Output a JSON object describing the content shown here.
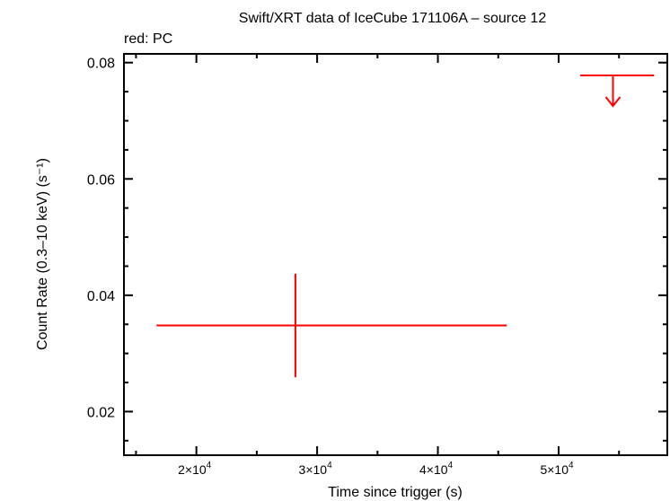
{
  "chart_data": {
    "type": "scatter",
    "title": "Swift/XRT data of IceCube 171106A – source 12",
    "subtitle": "red: PC",
    "xlabel": "Time since trigger (s)",
    "ylabel": "Count Rate (0.3–10 keV) (s⁻¹)",
    "xlim": [
      14000,
      59000
    ],
    "ylim": [
      0.0125,
      0.0815
    ],
    "x_ticks": [
      {
        "value": 20000,
        "mantissa": "2",
        "exp": "4"
      },
      {
        "value": 30000,
        "mantissa": "3",
        "exp": "4"
      },
      {
        "value": 40000,
        "mantissa": "4",
        "exp": "4"
      },
      {
        "value": 50000,
        "mantissa": "5",
        "exp": "4"
      }
    ],
    "y_ticks": [
      {
        "value": 0.02,
        "label": "0.02"
      },
      {
        "value": 0.04,
        "label": "0.04"
      },
      {
        "value": 0.06,
        "label": "0.06"
      },
      {
        "value": 0.08,
        "label": "0.08"
      }
    ],
    "series_color": "#ff0000",
    "points": [
      {
        "x": 28200,
        "xmin": 16700,
        "xmax": 45700,
        "y": 0.0348,
        "ymin": 0.0259,
        "ymax": 0.0437,
        "upper_limit": false
      },
      {
        "x": 54500,
        "xmin": 51800,
        "xmax": 57900,
        "y": 0.0778,
        "upper_limit": true
      }
    ],
    "grid": false
  }
}
